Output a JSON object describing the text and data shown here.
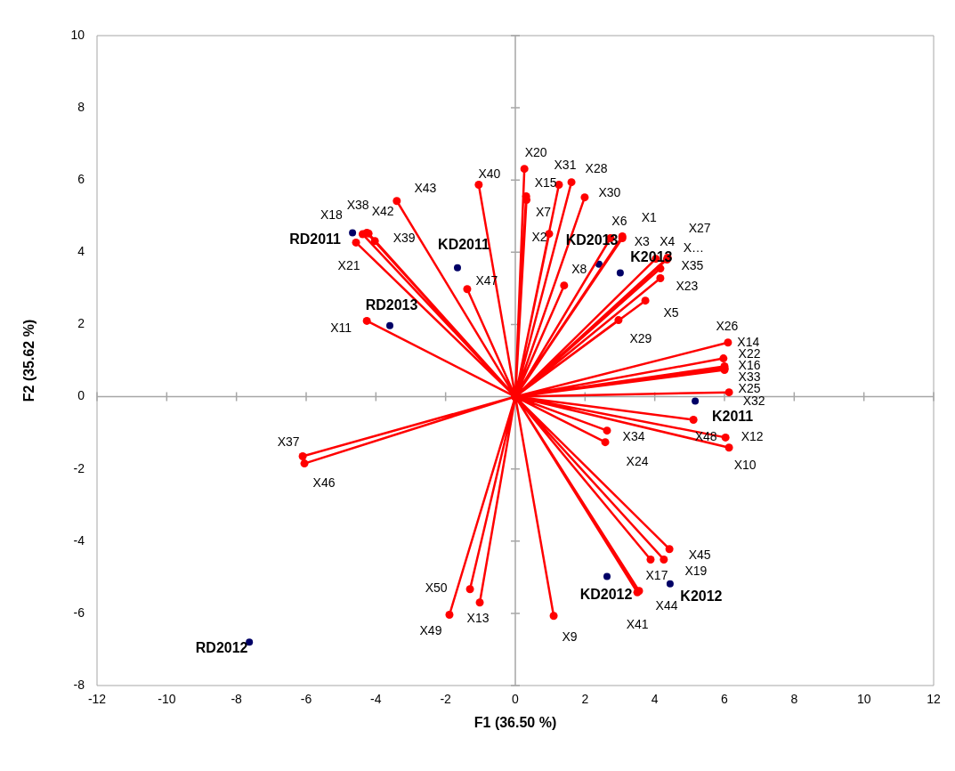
{
  "chart_data": {
    "type": "scatter",
    "xlabel": "F1 (36.50 %)",
    "ylabel": "F2 (35.62 %)",
    "xlim": [
      -12,
      12
    ],
    "ylim": [
      -8,
      10
    ],
    "xticks": [
      -12,
      -10,
      -8,
      -6,
      -4,
      -2,
      0,
      2,
      4,
      6,
      8,
      10,
      12
    ],
    "yticks": [
      -8,
      -6,
      -4,
      -2,
      0,
      2,
      4,
      6,
      8,
      10
    ],
    "marker": "circle",
    "legend": false,
    "series": [
      {
        "type": "line",
        "color": "#ff0000",
        "x": [
          0,
          0.26,
          0,
          0.31,
          0,
          0.32,
          0,
          1.25,
          0,
          1.61,
          0,
          1.99,
          0,
          0.97,
          0,
          1.4,
          0,
          2.73,
          0,
          3.07,
          0,
          3.07,
          0,
          4.03,
          0,
          4.37,
          0,
          4.35,
          0,
          4.16,
          0,
          4.16,
          0,
          3.73,
          0,
          2.96,
          0,
          6.1,
          0,
          5.97,
          0,
          6.0,
          0,
          6.0,
          0,
          6.0,
          0,
          6.0,
          0,
          6.13,
          0,
          5.11,
          0,
          6.03,
          0,
          6.13,
          0,
          2.63,
          0,
          2.58,
          0,
          4.42,
          0,
          4.26,
          0,
          3.88,
          0,
          3.55,
          0,
          3.5,
          0,
          1.1,
          0,
          -1.02,
          0,
          -1.3,
          0,
          -1.89,
          0,
          -6.1,
          0,
          -6.05,
          0,
          -4.26,
          0,
          -4.57,
          0,
          -4.38,
          0,
          -4.26,
          0,
          -4.21,
          0,
          -4.03,
          0,
          -3.4,
          0,
          -1.05,
          0,
          -1.38
        ],
        "values": [
          0,
          6.31,
          0,
          5.55,
          0,
          5.45,
          0,
          5.87,
          0,
          5.94,
          0,
          5.52,
          0,
          4.51,
          0,
          3.08,
          0,
          4.39,
          0,
          4.44,
          0,
          4.39,
          0,
          3.82,
          0,
          3.85,
          0,
          3.8,
          0,
          3.55,
          0,
          3.28,
          0,
          2.66,
          0,
          2.12,
          0,
          1.5,
          0,
          1.06,
          0,
          0.84,
          0,
          0.79,
          0,
          0.77,
          0,
          0.74,
          0,
          0.12,
          0,
          -0.64,
          0,
          -1.13,
          0,
          -1.41,
          0,
          -0.94,
          0,
          -1.26,
          0,
          -4.22,
          0,
          -4.51,
          0,
          -4.51,
          0,
          -5.38,
          0,
          -5.42,
          0,
          -6.07,
          0,
          -5.7,
          0,
          -5.33,
          0,
          -6.04,
          0,
          -1.65,
          0,
          -1.85,
          0,
          2.1,
          0,
          4.27,
          0,
          4.5,
          0,
          4.54,
          0,
          4.52,
          0,
          4.31,
          0,
          5.42,
          0,
          5.87,
          0,
          2.98
        ],
        "value_labels": [
          null,
          "X20",
          null,
          "X15",
          null,
          "X7",
          null,
          "X31",
          null,
          "X28",
          null,
          "X30",
          null,
          "X2",
          null,
          "X8",
          null,
          "X6",
          null,
          "X1",
          null,
          "X3",
          null,
          "X4",
          null,
          "X27",
          null,
          "X…",
          null,
          "X35",
          null,
          "X23",
          null,
          "X5",
          null,
          "X29",
          null,
          "X26",
          null,
          "X14",
          null,
          "X22",
          null,
          "X16",
          null,
          "X33",
          null,
          "X25",
          null,
          "X32",
          null,
          "X48",
          null,
          "X12",
          null,
          "X10",
          null,
          "X34",
          null,
          "X24",
          null,
          "X45",
          null,
          "X19",
          null,
          "X17",
          null,
          "X44",
          null,
          "X41",
          null,
          "X9",
          null,
          "X13",
          null,
          "X50",
          null,
          "X49",
          null,
          "X37",
          null,
          "X46",
          null,
          "X11",
          null,
          "X21",
          null,
          "X18",
          null,
          "X38",
          null,
          "X42",
          null,
          "X39",
          null,
          "X43",
          null,
          "X40",
          null,
          "X47"
        ]
      },
      {
        "type": "scatter",
        "color": "#000066",
        "x": [
          -4.67,
          -1.66,
          -3.6,
          2.4,
          3.01,
          5.16,
          2.63,
          4.44,
          -7.63
        ],
        "values": [
          4.54,
          3.57,
          1.97,
          3.67,
          3.43,
          -0.12,
          -4.98,
          -5.18,
          -6.8
        ],
        "value_labels": [
          "RD2011",
          "KD2011",
          "RD2013",
          "KD2013",
          "K2013",
          "K2011",
          "KD2012",
          "K2012",
          "RD2012"
        ]
      }
    ]
  }
}
